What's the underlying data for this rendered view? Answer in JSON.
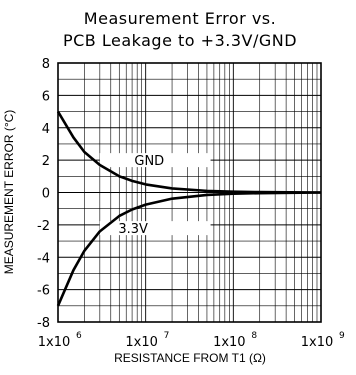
{
  "chart_data": {
    "type": "line",
    "title": [
      "Measurement Error vs.",
      "PCB Leakage to +3.3V/GND"
    ],
    "xlabel": "RESISTANCE FROM T1 (Ω)",
    "ylabel": "MEASUREMENT ERROR (°C)",
    "xscale": "log",
    "xlim": [
      1000000,
      1000000000
    ],
    "ylim": [
      -8,
      8
    ],
    "yticks": [
      8,
      6,
      4,
      2,
      0,
      -2,
      -4,
      -6,
      -8
    ],
    "xticks": [
      {
        "value": 1000000,
        "base": "1x10",
        "exp": "6"
      },
      {
        "value": 10000000,
        "base": "1x10",
        "exp": "7"
      },
      {
        "value": 100000000,
        "base": "1x10",
        "exp": "8"
      },
      {
        "value": 1000000000,
        "base": "1x10",
        "exp": "9"
      }
    ],
    "grid": true,
    "series": [
      {
        "name": "GND",
        "label_at": {
          "x": 11000000,
          "y": 2
        },
        "label_line": {
          "x1": 3000000,
          "x2": 55000000,
          "y": 2
        },
        "x": [
          1000000,
          1500000,
          2000000,
          3000000,
          5000000,
          7000000,
          10000000,
          20000000,
          50000000,
          100000000,
          200000000,
          1000000000
        ],
        "values": [
          5.0,
          3.4,
          2.5,
          1.7,
          1.0,
          0.72,
          0.5,
          0.25,
          0.1,
          0.05,
          0.025,
          0.0
        ]
      },
      {
        "name": "3.3V",
        "label_at": {
          "x": 7200000,
          "y": -2.2
        },
        "label_line": {
          "x1": 3000000,
          "x2": 55000000,
          "y": -2.2
        },
        "x": [
          1000000,
          1500000,
          2000000,
          3000000,
          5000000,
          7000000,
          10000000,
          20000000,
          50000000,
          100000000,
          200000000,
          1000000000
        ],
        "values": [
          -7.0,
          -4.8,
          -3.6,
          -2.4,
          -1.45,
          -1.05,
          -0.75,
          -0.38,
          -0.15,
          -0.075,
          -0.04,
          0.0
        ]
      }
    ]
  }
}
